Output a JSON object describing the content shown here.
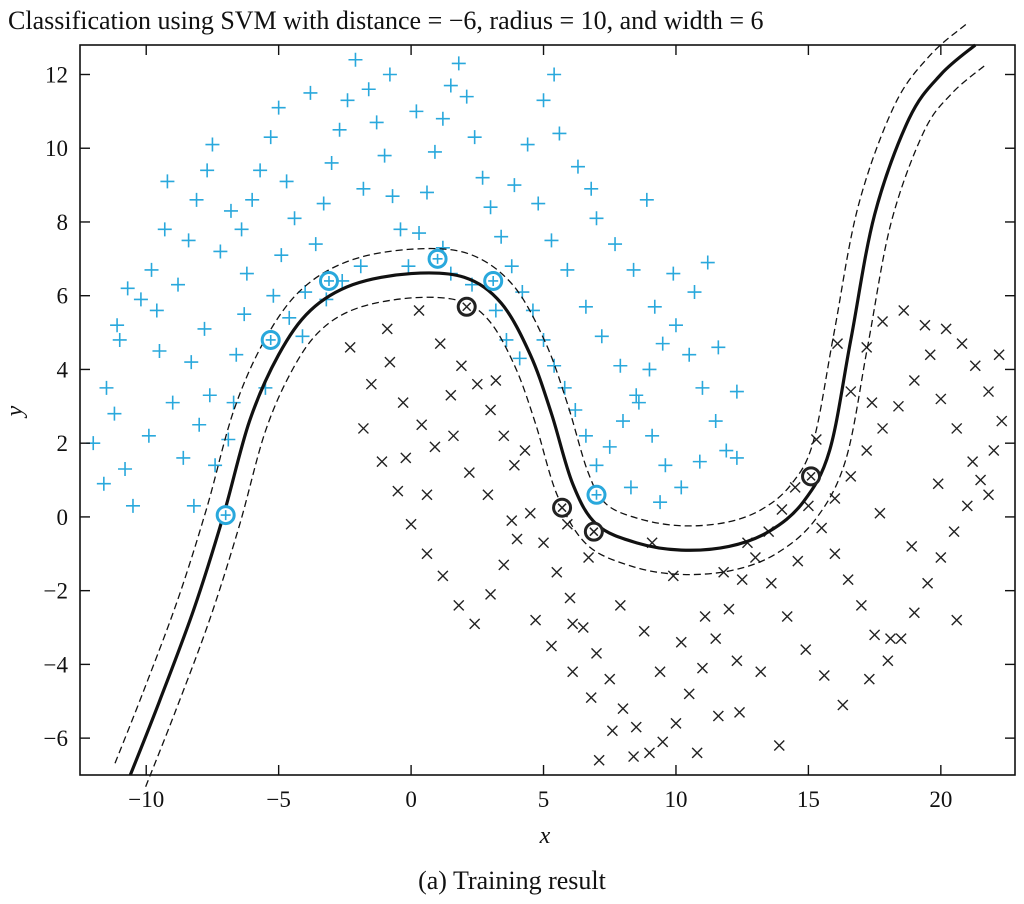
{
  "figure": {
    "title": "Classification using SVM with distance = −6, radius = 10, and width = 6",
    "caption": "(a) Training result"
  },
  "chart_data": {
    "type": "scatter",
    "title": "Classification using SVM with distance = −6, radius = 10, and width = 6",
    "xlabel": "x",
    "ylabel": "y",
    "xlim": [
      -12.5,
      22.8
    ],
    "ylim": [
      -7.0,
      12.8
    ],
    "xticks": [
      -10,
      -5,
      0,
      5,
      10,
      15,
      20
    ],
    "yticks": [
      -6,
      -4,
      -2,
      0,
      2,
      4,
      6,
      8,
      10,
      12
    ],
    "xtick_labels": [
      "−10",
      "−5",
      "0",
      "5",
      "10",
      "15",
      "20"
    ],
    "ytick_labels": [
      "−6",
      "−4",
      "−2",
      "0",
      "2",
      "4",
      "6",
      "8",
      "10",
      "12"
    ],
    "grid": false,
    "colors": {
      "class1": "#29a8dc",
      "class2": "#222222",
      "boundary": "#111111"
    },
    "series": [
      {
        "marker": "+",
        "color": "#29a8dc",
        "points": [
          [
            -12,
            2
          ],
          [
            -11.5,
            3.5
          ],
          [
            -11,
            4.8
          ],
          [
            -11.6,
            0.9
          ],
          [
            -10.8,
            1.3
          ],
          [
            -10.5,
            0.3
          ],
          [
            -11.2,
            2.8
          ],
          [
            -10.2,
            5.9
          ],
          [
            -9.8,
            6.7
          ],
          [
            -9.3,
            7.8
          ],
          [
            -9.6,
            5.6
          ],
          [
            -9,
            3.1
          ],
          [
            -8.6,
            1.6
          ],
          [
            -8.2,
            0.3
          ],
          [
            -10.7,
            6.2
          ],
          [
            -11.1,
            5.2
          ],
          [
            -9.9,
            2.2
          ],
          [
            -9.5,
            4.5
          ],
          [
            -8.8,
            6.3
          ],
          [
            -8.4,
            7.5
          ],
          [
            -8.1,
            8.6
          ],
          [
            -7.7,
            9.4
          ],
          [
            -7.5,
            10.1
          ],
          [
            -7.2,
            7.2
          ],
          [
            -7.8,
            5.1
          ],
          [
            -8.3,
            4.2
          ],
          [
            -8,
            2.5
          ],
          [
            -7.4,
            1.4
          ],
          [
            -6.9,
            2.1
          ],
          [
            -7.6,
            3.3
          ],
          [
            -6.6,
            4.4
          ],
          [
            -6.3,
            5.5
          ],
          [
            -6.2,
            6.6
          ],
          [
            -6.4,
            7.8
          ],
          [
            -6,
            8.6
          ],
          [
            -5.7,
            9.4
          ],
          [
            -5.3,
            10.3
          ],
          [
            -5,
            11.1
          ],
          [
            -4.7,
            9.1
          ],
          [
            -4.4,
            8.1
          ],
          [
            -4.9,
            7.1
          ],
          [
            -5.2,
            6
          ],
          [
            -4.6,
            5.4
          ],
          [
            -4,
            6.1
          ],
          [
            -3.6,
            7.4
          ],
          [
            -3.3,
            8.5
          ],
          [
            -3,
            9.6
          ],
          [
            -2.7,
            10.5
          ],
          [
            -2.4,
            11.3
          ],
          [
            -2.1,
            12.4
          ],
          [
            -1.6,
            11.6
          ],
          [
            -1.3,
            10.7
          ],
          [
            -1,
            9.8
          ],
          [
            -0.7,
            8.7
          ],
          [
            -0.4,
            7.8
          ],
          [
            -0.1,
            6.8
          ],
          [
            0.3,
            7.7
          ],
          [
            0.6,
            8.8
          ],
          [
            0.9,
            9.9
          ],
          [
            1.2,
            10.8
          ],
          [
            1.5,
            11.7
          ],
          [
            1.8,
            12.3
          ],
          [
            2.1,
            11.4
          ],
          [
            2.4,
            10.3
          ],
          [
            2.7,
            9.2
          ],
          [
            3,
            8.4
          ],
          [
            3.4,
            7.6
          ],
          [
            3.8,
            6.8
          ],
          [
            4.2,
            6.1
          ],
          [
            4.6,
            5.6
          ],
          [
            5,
            4.8
          ],
          [
            5.4,
            4.1
          ],
          [
            5.8,
            3.5
          ],
          [
            6.2,
            2.9
          ],
          [
            6.6,
            2.2
          ],
          [
            7,
            1.4
          ],
          [
            7.5,
            1.9
          ],
          [
            8,
            2.6
          ],
          [
            8.5,
            3.3
          ],
          [
            9,
            4
          ],
          [
            9.5,
            4.7
          ],
          [
            10,
            5.2
          ],
          [
            10.5,
            4.4
          ],
          [
            11,
            3.5
          ],
          [
            11.5,
            2.6
          ],
          [
            11.9,
            1.8
          ],
          [
            12.3,
            3.4
          ],
          [
            11.6,
            4.6
          ],
          [
            10.7,
            6.1
          ],
          [
            9.9,
            6.6
          ],
          [
            9.2,
            5.7
          ],
          [
            8.4,
            6.7
          ],
          [
            7.7,
            7.4
          ],
          [
            7,
            8.1
          ],
          [
            6.3,
            9.5
          ],
          [
            5.6,
            10.4
          ],
          [
            5,
            11.3
          ],
          [
            4.4,
            10.1
          ],
          [
            3.9,
            9
          ],
          [
            4.8,
            8.5
          ],
          [
            5.3,
            7.5
          ],
          [
            5.9,
            6.7
          ],
          [
            6.6,
            5.7
          ],
          [
            7.2,
            4.9
          ],
          [
            7.9,
            4.1
          ],
          [
            8.6,
            3.1
          ],
          [
            9.1,
            2.2
          ],
          [
            9.6,
            1.4
          ],
          [
            10.2,
            0.8
          ],
          [
            10.9,
            1.5
          ],
          [
            9.4,
            0.4
          ],
          [
            8.3,
            0.8
          ],
          [
            -2.6,
            6.4
          ],
          [
            -1.9,
            6.8
          ],
          [
            -3.2,
            5.9
          ],
          [
            -4.1,
            4.9
          ],
          [
            1.5,
            6.6
          ],
          [
            2.3,
            6.3
          ],
          [
            3.2,
            5.6
          ],
          [
            3.6,
            4.8
          ],
          [
            4.1,
            4.3
          ],
          [
            -0.8,
            12
          ],
          [
            0.2,
            11
          ],
          [
            -3.8,
            11.5
          ],
          [
            -6.8,
            8.3
          ],
          [
            -9.2,
            9.1
          ],
          [
            -5.5,
            3.5
          ],
          [
            -6.7,
            3.1
          ],
          [
            12.3,
            1.6
          ],
          [
            11.2,
            6.9
          ],
          [
            8.9,
            8.6
          ],
          [
            6.8,
            8.9
          ],
          [
            5.4,
            12.0
          ],
          [
            -1.8,
            8.9
          ],
          [
            1.2,
            7.3
          ]
        ]
      },
      {
        "marker": "x",
        "color": "#222222",
        "points": [
          [
            -2.3,
            4.6
          ],
          [
            -1.5,
            3.6
          ],
          [
            -0.8,
            4.2
          ],
          [
            -0.3,
            3.1
          ],
          [
            0.4,
            2.5
          ],
          [
            0.9,
            1.9
          ],
          [
            1.5,
            3.3
          ],
          [
            1.9,
            4.1
          ],
          [
            2.5,
            3.6
          ],
          [
            3,
            2.9
          ],
          [
            3.5,
            2.2
          ],
          [
            3.9,
            1.4
          ],
          [
            -1.8,
            2.4
          ],
          [
            -1.1,
            1.5
          ],
          [
            -0.5,
            0.7
          ],
          [
            0,
            -0.2
          ],
          [
            0.6,
            -1
          ],
          [
            1.2,
            -1.6
          ],
          [
            1.8,
            -2.4
          ],
          [
            2.4,
            -2.9
          ],
          [
            3,
            -2.1
          ],
          [
            3.5,
            -1.3
          ],
          [
            4,
            -0.6
          ],
          [
            4.5,
            0.1
          ],
          [
            5,
            -0.7
          ],
          [
            5.5,
            -1.5
          ],
          [
            6,
            -2.2
          ],
          [
            6.5,
            -3
          ],
          [
            7,
            -3.7
          ],
          [
            7.5,
            -4.4
          ],
          [
            8,
            -5.2
          ],
          [
            8.5,
            -5.7
          ],
          [
            9,
            -6.4
          ],
          [
            9.5,
            -6.1
          ],
          [
            10,
            -5.6
          ],
          [
            10.5,
            -4.8
          ],
          [
            11,
            -4.1
          ],
          [
            11.5,
            -3.3
          ],
          [
            12,
            -2.5
          ],
          [
            12.5,
            -1.7
          ],
          [
            13,
            -1.1
          ],
          [
            13.5,
            -0.4
          ],
          [
            14,
            0.2
          ],
          [
            14.5,
            0.8
          ],
          [
            15,
            0.3
          ],
          [
            15.5,
            -0.3
          ],
          [
            16,
            -1
          ],
          [
            16.5,
            -1.7
          ],
          [
            17,
            -2.4
          ],
          [
            17.5,
            -3.2
          ],
          [
            18,
            -3.9
          ],
          [
            18.5,
            -3.3
          ],
          [
            19,
            -2.6
          ],
          [
            19.5,
            -1.8
          ],
          [
            20,
            -1.1
          ],
          [
            20.5,
            -0.4
          ],
          [
            21,
            0.3
          ],
          [
            21.5,
            1
          ],
          [
            22,
            1.8
          ],
          [
            22.3,
            2.6
          ],
          [
            21.8,
            3.4
          ],
          [
            21.3,
            4.1
          ],
          [
            20.8,
            4.7
          ],
          [
            20.2,
            5.1
          ],
          [
            19.6,
            4.4
          ],
          [
            19,
            3.7
          ],
          [
            18.4,
            3
          ],
          [
            17.8,
            2.4
          ],
          [
            17.2,
            1.8
          ],
          [
            16.6,
            1.1
          ],
          [
            16,
            0.5
          ],
          [
            16.6,
            3.4
          ],
          [
            17.2,
            4.6
          ],
          [
            17.8,
            5.3
          ],
          [
            18.6,
            5.6
          ],
          [
            19.4,
            5.2
          ],
          [
            20,
            3.2
          ],
          [
            20.6,
            2.4
          ],
          [
            21.2,
            1.5
          ],
          [
            21.8,
            0.6
          ],
          [
            22.2,
            4.4
          ],
          [
            -0.9,
            5.1
          ],
          [
            0.3,
            5.6
          ],
          [
            1.1,
            4.7
          ],
          [
            2.2,
            1.2
          ],
          [
            2.9,
            0.6
          ],
          [
            4.7,
            -2.8
          ],
          [
            5.3,
            -3.5
          ],
          [
            6.1,
            -4.2
          ],
          [
            6.8,
            -4.9
          ],
          [
            7.6,
            -5.8
          ],
          [
            8.4,
            -6.5
          ],
          [
            9.4,
            -4.2
          ],
          [
            10.2,
            -3.4
          ],
          [
            11.1,
            -2.7
          ],
          [
            11.8,
            -1.5
          ],
          [
            12.7,
            -0.7
          ],
          [
            13.6,
            -1.8
          ],
          [
            14.2,
            -2.7
          ],
          [
            14.9,
            -3.6
          ],
          [
            15.6,
            -4.3
          ],
          [
            16.3,
            -5.1
          ],
          [
            17.3,
            -4.4
          ],
          [
            18.1,
            -3.3
          ],
          [
            10.8,
            -6.4
          ],
          [
            12.4,
            -5.3
          ],
          [
            13.2,
            -4.2
          ],
          [
            7.9,
            -2.4
          ],
          [
            8.8,
            -3.1
          ],
          [
            9.9,
            -1.6
          ],
          [
            6.7,
            -1.1
          ],
          [
            5.9,
            -0.2
          ],
          [
            4.3,
            1.8
          ],
          [
            3.2,
            3.7
          ],
          [
            1.6,
            2.2
          ],
          [
            0.6,
            0.6
          ],
          [
            -0.2,
            1.6
          ],
          [
            19.9,
            0.9
          ],
          [
            20.6,
            -2.8
          ],
          [
            18.9,
            -0.8
          ],
          [
            17.7,
            0.1
          ],
          [
            15.3,
            2.1
          ],
          [
            16.1,
            4.7
          ],
          [
            17.4,
            3.1
          ],
          [
            7.1,
            -6.6
          ],
          [
            11.6,
            -5.4
          ],
          [
            13.9,
            -6.2
          ],
          [
            12.3,
            -3.9
          ],
          [
            14.6,
            -1.2
          ],
          [
            9.1,
            -0.7
          ],
          [
            6.1,
            -2.9
          ],
          [
            3.8,
            -0.1
          ]
        ]
      }
    ],
    "support_vectors": [
      {
        "class": "+",
        "x": -7.0,
        "y": 0.05
      },
      {
        "class": "+",
        "x": -5.3,
        "y": 4.8
      },
      {
        "class": "+",
        "x": -3.1,
        "y": 6.4
      },
      {
        "class": "+",
        "x": 1.0,
        "y": 7.0
      },
      {
        "class": "+",
        "x": 3.1,
        "y": 6.4
      },
      {
        "class": "+",
        "x": 7.0,
        "y": 0.6
      },
      {
        "class": "x",
        "x": 2.1,
        "y": 5.7
      },
      {
        "class": "x",
        "x": 5.7,
        "y": 0.25
      },
      {
        "class": "x",
        "x": 6.9,
        "y": -0.4
      },
      {
        "class": "x",
        "x": 15.1,
        "y": 1.1
      }
    ],
    "decision_boundary": [
      [
        -10.6,
        -7
      ],
      [
        -9.5,
        -5
      ],
      [
        -8.2,
        -2.5
      ],
      [
        -7.1,
        0
      ],
      [
        -6.1,
        2.6
      ],
      [
        -5.0,
        4.4
      ],
      [
        -3.8,
        5.6
      ],
      [
        -2.2,
        6.3
      ],
      [
        0,
        6.6
      ],
      [
        2.0,
        6.5
      ],
      [
        3.4,
        5.8
      ],
      [
        4.5,
        4.4
      ],
      [
        5.3,
        2.8
      ],
      [
        6.1,
        0.9
      ],
      [
        7.0,
        -0.2
      ],
      [
        8.5,
        -0.7
      ],
      [
        10.2,
        -0.9
      ],
      [
        12.0,
        -0.8
      ],
      [
        13.5,
        -0.4
      ],
      [
        14.8,
        0.4
      ],
      [
        15.8,
        1.8
      ],
      [
        16.6,
        4.8
      ],
      [
        17.5,
        8.2
      ],
      [
        18.8,
        10.8
      ],
      [
        20.0,
        12.0
      ],
      [
        21.3,
        12.8
      ]
    ],
    "margin_offset": 0.3
  }
}
